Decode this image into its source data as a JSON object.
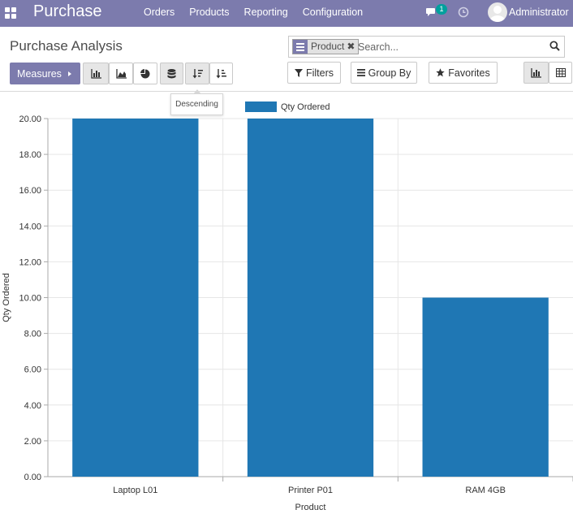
{
  "navbar": {
    "brand": "Purchase",
    "menu": [
      "Orders",
      "Products",
      "Reporting",
      "Configuration"
    ],
    "notification_count": "1",
    "user": "Administrator"
  },
  "page": {
    "title": "Purchase Analysis"
  },
  "search": {
    "facet_label": "Product",
    "placeholder": "Search..."
  },
  "toolbar": {
    "measures_label": "Measures",
    "filters_label": "Filters",
    "groupby_label": "Group By",
    "favorites_label": "Favorites",
    "tooltip": "Descending"
  },
  "colors": {
    "navbar": "#7c7bad",
    "bar": "#1f77b4"
  },
  "chart_data": {
    "type": "bar",
    "categories": [
      "Laptop L01",
      "Printer P01",
      "RAM 4GB"
    ],
    "series": [
      {
        "name": "Qty Ordered",
        "values": [
          20,
          20,
          10
        ]
      }
    ],
    "xlabel": "Product",
    "ylabel": "Qty Ordered",
    "ylim": [
      0,
      20
    ],
    "yticks": [
      "0.00",
      "2.00",
      "4.00",
      "6.00",
      "8.00",
      "10.00",
      "12.00",
      "14.00",
      "16.00",
      "18.00",
      "20.00"
    ],
    "grid": true,
    "legend": "top-center"
  }
}
